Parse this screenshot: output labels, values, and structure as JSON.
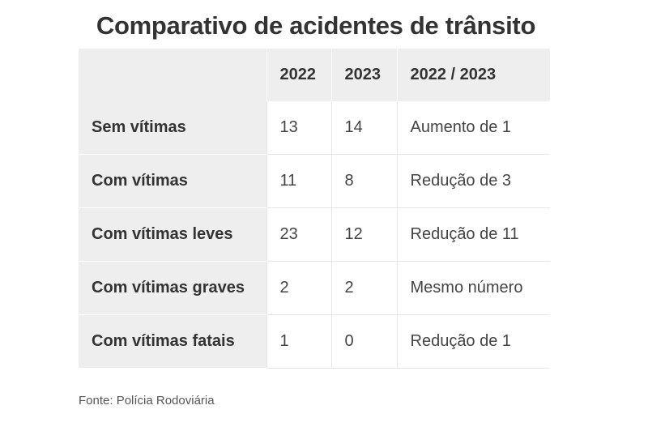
{
  "chart_data": {
    "type": "table",
    "title": "Comparativo de acidentes de trânsito",
    "columns": [
      "",
      "2022",
      "2023",
      "2022 / 2023"
    ],
    "rows": [
      {
        "label": "Sem vítimas",
        "y2022": 13,
        "y2023": 14,
        "change": "Aumento de 1"
      },
      {
        "label": "Com vítimas",
        "y2022": 11,
        "y2023": 8,
        "change": "Redução de 3"
      },
      {
        "label": "Com vítimas leves",
        "y2022": 23,
        "y2023": 12,
        "change": "Redução de 11"
      },
      {
        "label": "Com vítimas graves",
        "y2022": 2,
        "y2023": 2,
        "change": "Mesmo número"
      },
      {
        "label": "Com vítimas fatais",
        "y2022": 1,
        "y2023": 0,
        "change": "Redução de 1"
      }
    ],
    "source": "Fonte: Polícia Rodoviária"
  },
  "colors": {
    "header_bg": "#eeeeee",
    "label_bg": "#eeeeee",
    "text": "#333333",
    "border": "#e6e6e6"
  }
}
